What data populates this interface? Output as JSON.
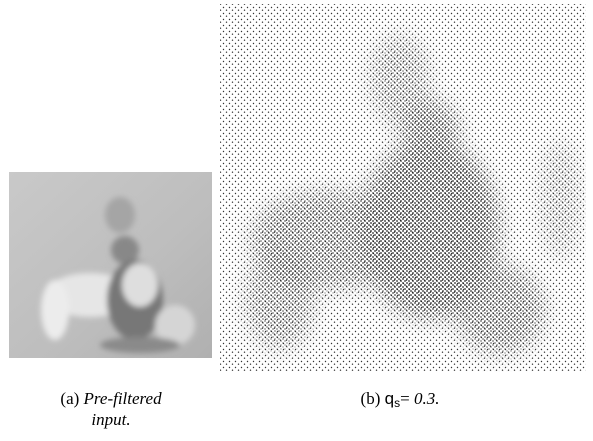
{
  "figure": {
    "panel_a": {
      "label": "(a)",
      "caption_line1": "Pre-filtered",
      "caption_line2": "input."
    },
    "panel_b": {
      "label": "(b)",
      "symbol": "q",
      "subscript": "s",
      "equals": "=",
      "value_text": "0.3."
    }
  }
}
